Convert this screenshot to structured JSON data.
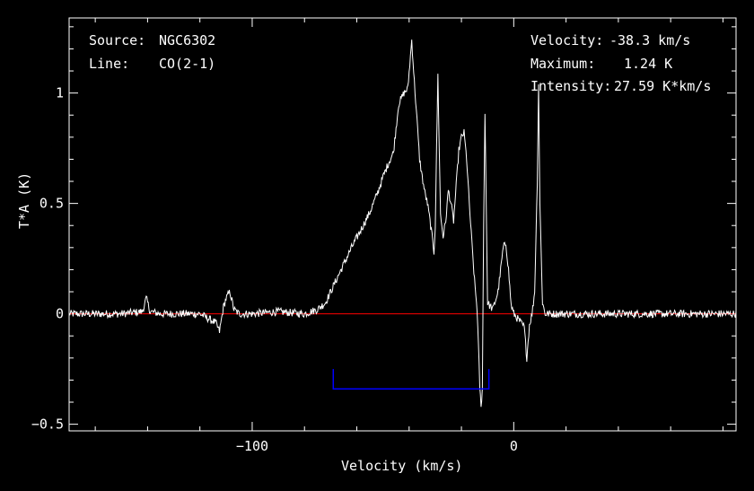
{
  "header": {
    "source_label": "Source:",
    "source_value": "NGC6302",
    "line_label": "Line:",
    "line_value": "CO(2-1)",
    "velocity_label": "Velocity:",
    "velocity_value": "-38.3 km/s",
    "maximum_label": "Maximum:",
    "maximum_value": "1.24 K",
    "intensity_label": "Intensity:",
    "intensity_value": "27.59 K*km/s"
  },
  "colors": {
    "spectrum": "#ffffff",
    "baseline": "#ff0000",
    "window_marker": "#0000ff",
    "axes": "#ffffff",
    "background": "#000000"
  },
  "chart_data": {
    "type": "line",
    "xlabel": "Velocity (km/s)",
    "ylabel": "T*A (K)",
    "xlim": [
      -170,
      85
    ],
    "ylim": [
      -0.53,
      1.34
    ],
    "x_ticks": [
      -100,
      0
    ],
    "x_tick_labels": [
      "−100",
      "0"
    ],
    "y_ticks": [
      -0.5,
      0,
      0.5,
      1
    ],
    "y_tick_labels": [
      "−0.5",
      "0",
      "0.5",
      "1"
    ],
    "baseline_level": 0,
    "integration_window": {
      "x_start": -69,
      "x_end": -9.5,
      "level": -0.34,
      "tick_top": -0.25
    },
    "series": [
      {
        "x": [
          -170,
          -160,
          -150,
          -142,
          -140.5,
          -139,
          -135,
          -130,
          -120,
          -114,
          -112.5,
          -111,
          -110,
          -108.5,
          -107,
          -105,
          -100,
          -90,
          -80,
          -75,
          -72,
          -70,
          -66,
          -62,
          -58,
          -55,
          -52,
          -50,
          -48,
          -46,
          -44,
          -42,
          -40.5,
          -39,
          -38,
          -37,
          -36,
          -35,
          -34,
          -33,
          -32,
          -31,
          -30.5,
          -30,
          -29.5,
          -29,
          -28,
          -27,
          -26,
          -25,
          -24,
          -23,
          -22,
          -21,
          -20,
          -19,
          -18,
          -17,
          -16,
          -15,
          -14,
          -13.5,
          -13,
          -12.5,
          -12,
          -11.5,
          -11,
          -10,
          -8,
          -6,
          -4,
          -3,
          -2,
          -1,
          0,
          2,
          4,
          5,
          6,
          7,
          8,
          9,
          9.5,
          10,
          11,
          12,
          20,
          40,
          60,
          85
        ],
        "y": [
          0,
          0,
          0,
          0.01,
          0.07,
          0.01,
          0,
          0,
          0,
          -0.04,
          -0.08,
          0.03,
          0.07,
          0.1,
          0.02,
          0,
          0,
          0.01,
          0,
          0.02,
          0.05,
          0.1,
          0.2,
          0.3,
          0.39,
          0.46,
          0.55,
          0.62,
          0.68,
          0.73,
          0.95,
          1.0,
          1.02,
          1.24,
          1.05,
          0.88,
          0.7,
          0.62,
          0.55,
          0.5,
          0.42,
          0.33,
          0.28,
          0.4,
          0.75,
          1.08,
          0.45,
          0.35,
          0.42,
          0.56,
          0.5,
          0.42,
          0.58,
          0.74,
          0.8,
          0.82,
          0.7,
          0.5,
          0.32,
          0.15,
          0.02,
          -0.15,
          -0.32,
          -0.43,
          -0.33,
          0.4,
          0.92,
          0.05,
          0.02,
          0.1,
          0.3,
          0.32,
          0.2,
          0.04,
          0,
          -0.03,
          -0.06,
          -0.2,
          -0.05,
          0,
          0.1,
          0.6,
          1.04,
          0.5,
          0.05,
          0,
          0,
          0,
          0,
          0
        ]
      }
    ]
  }
}
